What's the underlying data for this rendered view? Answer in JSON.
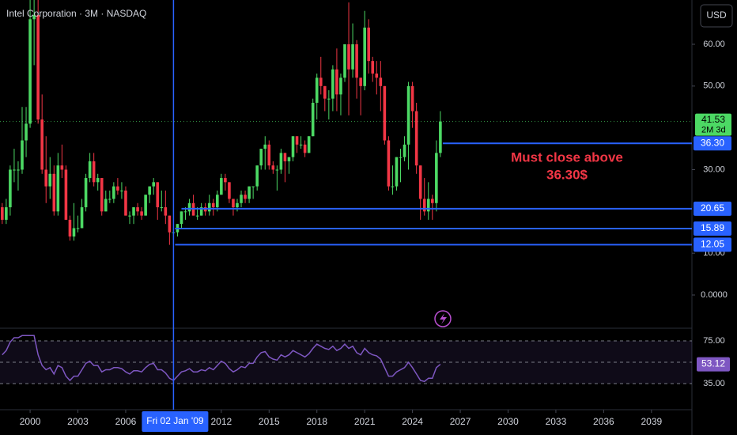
{
  "chart_data": {
    "type": "candlestick",
    "title": "Intel Corporation · 3M · NASDAQ",
    "currency": "USD",
    "colors": {
      "up": "#4cd964",
      "down": "#f23645",
      "level": "#2962ff",
      "annotation": "#f23645"
    },
    "x": [
      1998.25,
      1998.5,
      1998.75,
      1999,
      1999.25,
      1999.5,
      1999.75,
      2000,
      2000.25,
      2000.5,
      2000.75,
      2001,
      2001.25,
      2001.5,
      2001.75,
      2002,
      2002.25,
      2002.5,
      2002.75,
      2003,
      2003.25,
      2003.5,
      2003.75,
      2004,
      2004.25,
      2004.5,
      2004.75,
      2005,
      2005.25,
      2005.5,
      2005.75,
      2006,
      2006.25,
      2006.5,
      2006.75,
      2007,
      2007.25,
      2007.5,
      2007.75,
      2008,
      2008.25,
      2008.5,
      2008.75,
      2009,
      2009.25,
      2009.5,
      2009.75,
      2010,
      2010.25,
      2010.5,
      2010.75,
      2011,
      2011.25,
      2011.5,
      2011.75,
      2012,
      2012.25,
      2012.5,
      2012.75,
      2013,
      2013.25,
      2013.5,
      2013.75,
      2014,
      2014.25,
      2014.5,
      2014.75,
      2015,
      2015.25,
      2015.5,
      2015.75,
      2016,
      2016.25,
      2016.5,
      2016.75,
      2017,
      2017.25,
      2017.5,
      2017.75,
      2018,
      2018.25,
      2018.5,
      2018.75,
      2019,
      2019.25,
      2019.5,
      2019.75,
      2020,
      2020.25,
      2020.5,
      2020.75,
      2021,
      2021.25,
      2021.5,
      2021.75,
      2022,
      2022.25,
      2022.5,
      2022.75,
      2023,
      2023.25,
      2023.5,
      2023.75,
      2024,
      2024.25,
      2024.5,
      2024.75,
      2025,
      2025.25,
      2025.5,
      2025.75
    ],
    "candles": [
      [
        21,
        22,
        17,
        18
      ],
      [
        18,
        23,
        17,
        21
      ],
      [
        21,
        31,
        19,
        30
      ],
      [
        30,
        35,
        27,
        30
      ],
      [
        30,
        32,
        25,
        30
      ],
      [
        30,
        45,
        29,
        37
      ],
      [
        37,
        45,
        33,
        41
      ],
      [
        41,
        75,
        40,
        66
      ],
      [
        66,
        72,
        55,
        67
      ],
      [
        67,
        76,
        41,
        42
      ],
      [
        42,
        48,
        29,
        30
      ],
      [
        30,
        38,
        22,
        26
      ],
      [
        26,
        33,
        23,
        29
      ],
      [
        29,
        31,
        19,
        20
      ],
      [
        20,
        34,
        19,
        31
      ],
      [
        31,
        36,
        28,
        30
      ],
      [
        30,
        31,
        18,
        18
      ],
      [
        18,
        19,
        13,
        14
      ],
      [
        14,
        22,
        13,
        16
      ],
      [
        16,
        19,
        15,
        16
      ],
      [
        16,
        23,
        16,
        21
      ],
      [
        21,
        29,
        20,
        28
      ],
      [
        28,
        34,
        27,
        32
      ],
      [
        32,
        34,
        26,
        27
      ],
      [
        27,
        29,
        25,
        28
      ],
      [
        28,
        28,
        19,
        20
      ],
      [
        20,
        25,
        20,
        23
      ],
      [
        23,
        25,
        22,
        23
      ],
      [
        23,
        27,
        22,
        26
      ],
      [
        26,
        28,
        24,
        25
      ],
      [
        25,
        27,
        23,
        25
      ],
      [
        25,
        26,
        19,
        19
      ],
      [
        19,
        20,
        17,
        19
      ],
      [
        19,
        21,
        17,
        21
      ],
      [
        21,
        22,
        19,
        20
      ],
      [
        20,
        21,
        18,
        19
      ],
      [
        19,
        24,
        19,
        24
      ],
      [
        24,
        26,
        22,
        26
      ],
      [
        26,
        28,
        24,
        27
      ],
      [
        27,
        27,
        18,
        21
      ],
      [
        21,
        25,
        20,
        21
      ],
      [
        21,
        25,
        17,
        19
      ],
      [
        19,
        19,
        12,
        15
      ],
      [
        15,
        16,
        12,
        15
      ],
      [
        15,
        17,
        14,
        17
      ],
      [
        17,
        20,
        16,
        20
      ],
      [
        20,
        21,
        18,
        20
      ],
      [
        20,
        23,
        19,
        22
      ],
      [
        22,
        24,
        19,
        19
      ],
      [
        19,
        21,
        18,
        19
      ],
      [
        19,
        22,
        19,
        21
      ],
      [
        21,
        22,
        19,
        20
      ],
      [
        20,
        24,
        19,
        22
      ],
      [
        22,
        23,
        19,
        21
      ],
      [
        21,
        25,
        20,
        24
      ],
      [
        24,
        29,
        24,
        28
      ],
      [
        28,
        29,
        25,
        27
      ],
      [
        27,
        27,
        22,
        23
      ],
      [
        23,
        23,
        19,
        21
      ],
      [
        21,
        23,
        20,
        22
      ],
      [
        22,
        25,
        21,
        24
      ],
      [
        24,
        25,
        22,
        23
      ],
      [
        23,
        26,
        22,
        26
      ],
      [
        26,
        26,
        23,
        26
      ],
      [
        26,
        31,
        25,
        31
      ],
      [
        31,
        35,
        30,
        35
      ],
      [
        35,
        38,
        30,
        36
      ],
      [
        36,
        37,
        30,
        31
      ],
      [
        31,
        32,
        29,
        30
      ],
      [
        30,
        31,
        25,
        30
      ],
      [
        30,
        35,
        29,
        34
      ],
      [
        34,
        34,
        27,
        32
      ],
      [
        32,
        33,
        29,
        33
      ],
      [
        33,
        38,
        32,
        38
      ],
      [
        38,
        38,
        34,
        36
      ],
      [
        36,
        38,
        35,
        36
      ],
      [
        36,
        37,
        33,
        34
      ],
      [
        34,
        38,
        34,
        38
      ],
      [
        38,
        47,
        38,
        46
      ],
      [
        46,
        53,
        42,
        52
      ],
      [
        52,
        57,
        48,
        50
      ],
      [
        50,
        50,
        44,
        47
      ],
      [
        47,
        49,
        42,
        47
      ],
      [
        47,
        55,
        44,
        54
      ],
      [
        54,
        59,
        44,
        48
      ],
      [
        48,
        53,
        43,
        52
      ],
      [
        52,
        60,
        51,
        60
      ],
      [
        60,
        70,
        43,
        54
      ],
      [
        54,
        65,
        52,
        60
      ],
      [
        60,
        61,
        47,
        52
      ],
      [
        52,
        52,
        43,
        50
      ],
      [
        50,
        68,
        49,
        64
      ],
      [
        64,
        66,
        53,
        56
      ],
      [
        56,
        57,
        51,
        53
      ],
      [
        53,
        56,
        48,
        52
      ],
      [
        52,
        56,
        44,
        50
      ],
      [
        50,
        50,
        36,
        37
      ],
      [
        37,
        38,
        25,
        26
      ],
      [
        26,
        31,
        24,
        26
      ],
      [
        26,
        33,
        25,
        33
      ],
      [
        33,
        35,
        27,
        33
      ],
      [
        33,
        38,
        32,
        36
      ],
      [
        36,
        51,
        30,
        50
      ],
      [
        50,
        51,
        40,
        44
      ],
      [
        44,
        46,
        29,
        31
      ],
      [
        31,
        31,
        18,
        23
      ],
      [
        23,
        28,
        19,
        20
      ],
      [
        20,
        27,
        18,
        23
      ],
      [
        23,
        24,
        18,
        22
      ],
      [
        22,
        37,
        20,
        34
      ],
      [
        34,
        44,
        33,
        41.53
      ]
    ],
    "countdown": "2M 3d",
    "xlim": [
      1998.11,
      2041.54
    ],
    "xticks": [
      2000,
      2003,
      2006,
      2012,
      2015,
      2018,
      2021,
      2024,
      2027,
      2030,
      2033,
      2036,
      2039
    ],
    "crosshair": {
      "value": 2009,
      "label": "Fri 02 Jan '09"
    },
    "ylim": [
      -7.95,
      70.6
    ],
    "yticks": [
      {
        "value": 0,
        "label": "0.0000"
      },
      {
        "value": 10,
        "label": "10.00"
      },
      {
        "value": 30,
        "label": "30.00"
      },
      {
        "value": 50,
        "label": "50.00"
      },
      {
        "value": 60,
        "label": "60.00"
      }
    ],
    "levels": [
      {
        "value": 36.3,
        "label": "36.30",
        "start": 2025.9
      },
      {
        "value": 20.65,
        "label": "20.65",
        "start": 2009.5
      },
      {
        "value": 15.89,
        "label": "15.89",
        "start": 2009.1
      },
      {
        "value": 12.05,
        "label": "12.05",
        "start": 2009.1
      }
    ],
    "annotation": [
      "Must close above",
      "36.30$"
    ],
    "rsi": {
      "color": "#7e57c2",
      "values": [
        62,
        66,
        74,
        78,
        78,
        80,
        80,
        80,
        80,
        62,
        52,
        48,
        50,
        44,
        52,
        50,
        42,
        38,
        42,
        42,
        48,
        54,
        56,
        52,
        52,
        46,
        48,
        48,
        50,
        50,
        49,
        46,
        44,
        47,
        47,
        46,
        50,
        53,
        54,
        48,
        48,
        45,
        40,
        38,
        42,
        46,
        47,
        49,
        46,
        46,
        48,
        47,
        50,
        48,
        52,
        56,
        54,
        49,
        46,
        48,
        51,
        50,
        54,
        54,
        60,
        64,
        65,
        60,
        58,
        57,
        62,
        60,
        62,
        66,
        64,
        62,
        60,
        63,
        68,
        72,
        70,
        68,
        67,
        70,
        66,
        68,
        72,
        68,
        70,
        64,
        62,
        68,
        64,
        62,
        61,
        58,
        50,
        42,
        42,
        46,
        48,
        50,
        55,
        50,
        44,
        38,
        37,
        40,
        40,
        50,
        53.12
      ],
      "ylim": [
        15,
        86.9
      ],
      "yticks": [
        {
          "value": 75,
          "label": "75.00"
        },
        {
          "value": 35,
          "label": "35.00"
        }
      ],
      "midline": 55
    }
  }
}
